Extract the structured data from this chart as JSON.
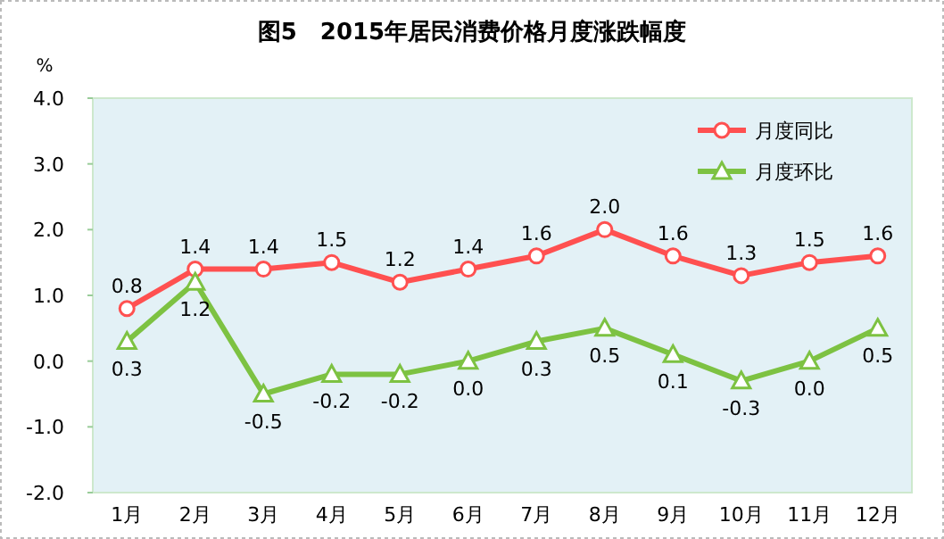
{
  "chart_data": {
    "type": "line",
    "title": "图5　2015年居民消费价格月度涨跌幅度",
    "ylabel": "%",
    "categories": [
      "1月",
      "2月",
      "3月",
      "4月",
      "5月",
      "6月",
      "7月",
      "8月",
      "9月",
      "10月",
      "11月",
      "12月"
    ],
    "series": [
      {
        "name": "月度同比",
        "color": "#ff5050",
        "marker": "circle",
        "values": [
          0.8,
          1.4,
          1.4,
          1.5,
          1.2,
          1.4,
          1.6,
          2.0,
          1.6,
          1.3,
          1.5,
          1.6
        ],
        "value_labels": [
          "0.8",
          "1.4",
          "1.4",
          "1.5",
          "1.2",
          "1.4",
          "1.6",
          "2.0",
          "1.6",
          "1.3",
          "1.5",
          "1.6"
        ]
      },
      {
        "name": "月度环比",
        "color": "#7dc242",
        "marker": "triangle",
        "values": [
          0.3,
          1.2,
          -0.5,
          -0.2,
          -0.2,
          0.0,
          0.3,
          0.5,
          0.1,
          -0.3,
          0.0,
          0.5
        ],
        "value_labels": [
          "0.3",
          "1.2",
          "-0.5",
          "-0.2",
          "-0.2",
          "0.0",
          "0.3",
          "0.5",
          "0.1",
          "-0.3",
          "0.0",
          "0.5"
        ]
      }
    ],
    "ylim": [
      -2.0,
      4.0
    ],
    "yticks": [
      {
        "value": -2,
        "label": "-2.0"
      },
      {
        "value": -1,
        "label": "-1.0"
      },
      {
        "value": 0,
        "label": "0.0"
      },
      {
        "value": 1,
        "label": "1.0"
      },
      {
        "value": 2,
        "label": "2.0"
      },
      {
        "value": 3,
        "label": "3.0"
      },
      {
        "value": 4,
        "label": "4.0"
      }
    ],
    "legend": "top right",
    "grid": false
  }
}
